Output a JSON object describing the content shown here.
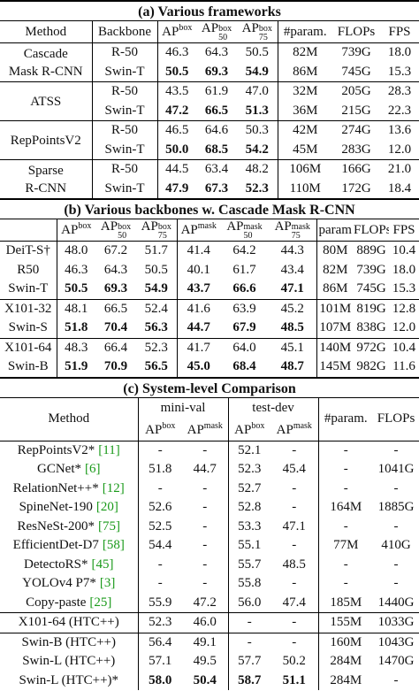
{
  "tables": [
    {
      "title": "(a) Various frameworks",
      "header": [
        "Method",
        "Backbone",
        {
          "base": "AP",
          "sup": "box"
        },
        {
          "base": "AP",
          "sup": "box",
          "sub": "50"
        },
        {
          "base": "AP",
          "sup": "box",
          "sub": "75"
        },
        "#param.",
        "FLOPs",
        "FPS"
      ],
      "groups": [
        {
          "method": [
            "Cascade",
            "Mask R-CNN"
          ],
          "rows": [
            {
              "backbone": "R-50",
              "cells": [
                "46.3",
                "64.3",
                "50.5",
                "82M",
                "739G",
                "18.0"
              ]
            },
            {
              "backbone": "Swin-T",
              "bold": true,
              "cells": [
                "50.5",
                "69.3",
                "54.9",
                "86M",
                "745G",
                "15.3"
              ]
            }
          ]
        },
        {
          "method": [
            "ATSS"
          ],
          "rows": [
            {
              "backbone": "R-50",
              "cells": [
                "43.5",
                "61.9",
                "47.0",
                "32M",
                "205G",
                "28.3"
              ]
            },
            {
              "backbone": "Swin-T",
              "bold": true,
              "cells": [
                "47.2",
                "66.5",
                "51.3",
                "36M",
                "215G",
                "22.3"
              ]
            }
          ]
        },
        {
          "method": [
            "RepPointsV2"
          ],
          "rows": [
            {
              "backbone": "R-50",
              "cells": [
                "46.5",
                "64.6",
                "50.3",
                "42M",
                "274G",
                "13.6"
              ]
            },
            {
              "backbone": "Swin-T",
              "bold": true,
              "cells": [
                "50.0",
                "68.5",
                "54.2",
                "45M",
                "283G",
                "12.0"
              ]
            }
          ]
        },
        {
          "method": [
            "Sparse",
            "R-CNN"
          ],
          "rows": [
            {
              "backbone": "R-50",
              "cells": [
                "44.5",
                "63.4",
                "48.2",
                "106M",
                "166G",
                "21.0"
              ]
            },
            {
              "backbone": "Swin-T",
              "bold": true,
              "cells": [
                "47.9",
                "67.3",
                "52.3",
                "110M",
                "172G",
                "18.4"
              ]
            }
          ]
        }
      ]
    },
    {
      "title": "(b) Various backbones w. Cascade Mask R-CNN",
      "header": [
        {
          "base": "AP",
          "sup": "box"
        },
        {
          "base": "AP",
          "sup": "box",
          "sub": "50"
        },
        {
          "base": "AP",
          "sup": "box",
          "sub": "75"
        },
        {
          "base": "AP",
          "sup": "mask"
        },
        {
          "base": "AP",
          "sup": "mask",
          "sub": "50"
        },
        {
          "base": "AP",
          "sup": "mask",
          "sub": "75"
        },
        "param",
        "FLOPs",
        "FPS"
      ],
      "groups": [
        [
          {
            "name": "DeiT-S†",
            "cells": [
              "48.0",
              "67.2",
              "51.7",
              "41.4",
              "64.2",
              "44.3",
              "80M",
              "889G",
              "10.4"
            ]
          },
          {
            "name": "R50",
            "cells": [
              "46.3",
              "64.3",
              "50.5",
              "40.1",
              "61.7",
              "43.4",
              "82M",
              "739G",
              "18.0"
            ]
          },
          {
            "name": "Swin-T",
            "bold": true,
            "cells": [
              "50.5",
              "69.3",
              "54.9",
              "43.7",
              "66.6",
              "47.1",
              "86M",
              "745G",
              "15.3"
            ]
          }
        ],
        [
          {
            "name": "X101-32",
            "cells": [
              "48.1",
              "66.5",
              "52.4",
              "41.6",
              "63.9",
              "45.2",
              "101M",
              "819G",
              "12.8"
            ]
          },
          {
            "name": "Swin-S",
            "bold": true,
            "cells": [
              "51.8",
              "70.4",
              "56.3",
              "44.7",
              "67.9",
              "48.5",
              "107M",
              "838G",
              "12.0"
            ]
          }
        ],
        [
          {
            "name": "X101-64",
            "cells": [
              "48.3",
              "66.4",
              "52.3",
              "41.7",
              "64.0",
              "45.1",
              "140M",
              "972G",
              "10.4"
            ]
          },
          {
            "name": "Swin-B",
            "bold": true,
            "cells": [
              "51.9",
              "70.9",
              "56.5",
              "45.0",
              "68.4",
              "48.7",
              "145M",
              "982G",
              "11.6"
            ]
          }
        ]
      ]
    },
    {
      "title": "(c) System-level Comparison",
      "header": {
        "method": "Method",
        "groups": [
          {
            "name": "mini-val",
            "cols": [
              {
                "base": "AP",
                "sup": "box"
              },
              {
                "base": "AP",
                "sup": "mask"
              }
            ]
          },
          {
            "name": "test-dev",
            "cols": [
              {
                "base": "AP",
                "sup": "box"
              },
              {
                "base": "AP",
                "sup": "mask"
              }
            ]
          }
        ],
        "param": "#param.",
        "flops": "FLOPs"
      },
      "groups": [
        [
          {
            "name": "RepPointsV2*",
            "cite": "[11]",
            "cells": [
              "-",
              "-",
              "52.1",
              "-",
              "-",
              "-"
            ]
          },
          {
            "name": "GCNet*",
            "cite": "[6]",
            "cells": [
              "51.8",
              "44.7",
              "52.3",
              "45.4",
              "-",
              "1041G"
            ]
          },
          {
            "name": "RelationNet++*",
            "cite": "[12]",
            "cells": [
              "-",
              "-",
              "52.7",
              "-",
              "-",
              "-"
            ]
          },
          {
            "name": "SpineNet-190",
            "cite": "[20]",
            "cells": [
              "52.6",
              "-",
              "52.8",
              "-",
              "164M",
              "1885G"
            ]
          },
          {
            "name": "ResNeSt-200*",
            "cite": "[75]",
            "cells": [
              "52.5",
              "-",
              "53.3",
              "47.1",
              "-",
              "-"
            ]
          },
          {
            "name": "EfficientDet-D7",
            "cite": "[58]",
            "cells": [
              "54.4",
              "-",
              "55.1",
              "-",
              "77M",
              "410G"
            ]
          },
          {
            "name": "DetectoRS*",
            "cite": "[45]",
            "cells": [
              "-",
              "-",
              "55.7",
              "48.5",
              "-",
              "-"
            ]
          },
          {
            "name": "YOLOv4 P7*",
            "cite": "[3]",
            "cells": [
              "-",
              "-",
              "55.8",
              "-",
              "-",
              "-"
            ]
          },
          {
            "name": "Copy-paste",
            "cite": "[25]",
            "cells": [
              "55.9",
              "47.2",
              "56.0",
              "47.4",
              "185M",
              "1440G"
            ]
          }
        ],
        [
          {
            "name": "X101-64 (HTC++)",
            "cells": [
              "52.3",
              "46.0",
              "-",
              "-",
              "155M",
              "1033G"
            ]
          }
        ],
        [
          {
            "name": "Swin-B (HTC++)",
            "cells": [
              "56.4",
              "49.1",
              "-",
              "-",
              "160M",
              "1043G"
            ]
          },
          {
            "name": "Swin-L (HTC++)",
            "cells": [
              "57.1",
              "49.5",
              "57.7",
              "50.2",
              "284M",
              "1470G"
            ]
          },
          {
            "name": "Swin-L (HTC++)*",
            "bold": true,
            "cells": [
              "58.0",
              "50.4",
              "58.7",
              "51.1",
              "284M",
              "-"
            ]
          }
        ]
      ]
    }
  ]
}
